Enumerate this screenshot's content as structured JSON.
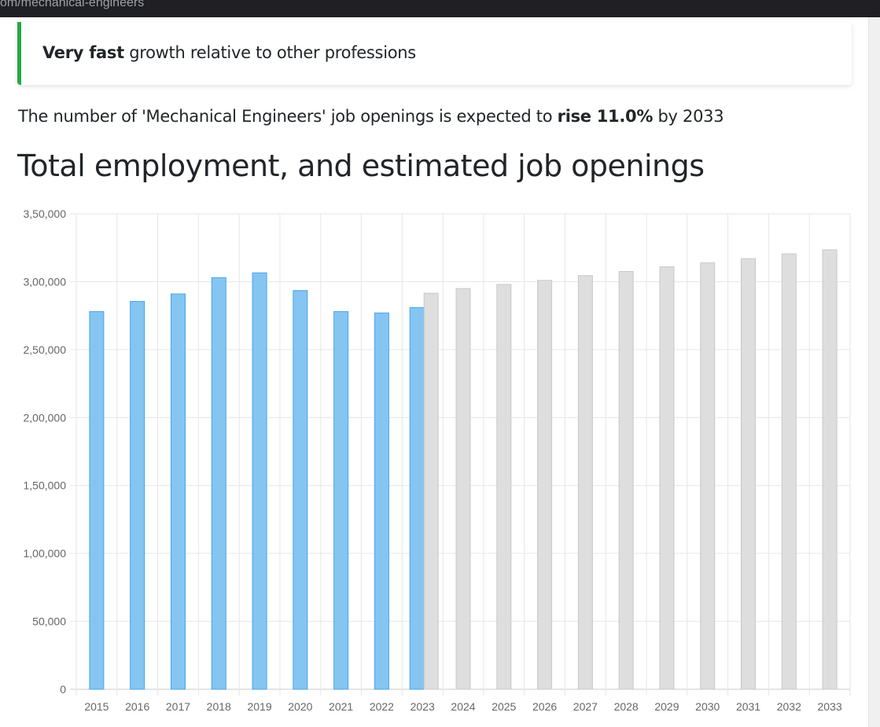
{
  "browser": {
    "url_fragment": "om/mechanical-engineers"
  },
  "callout": {
    "strong": "Very fast",
    "rest": " growth relative to other professions",
    "accent_color": "#28a745"
  },
  "summary": {
    "prefix": "The number of 'Mechanical Engineers' job openings is expected to ",
    "strong": "rise 11.0%",
    "suffix": " by 2033"
  },
  "section_title": "Total employment, and estimated job openings",
  "chart_data": {
    "type": "bar",
    "title": "",
    "xlabel": "",
    "ylabel": "",
    "ylim": [
      0,
      350000
    ],
    "y_ticks": [
      {
        "value": 0,
        "label": "0"
      },
      {
        "value": 50000,
        "label": "50,000"
      },
      {
        "value": 100000,
        "label": "1,00,000"
      },
      {
        "value": 150000,
        "label": "1,50,000"
      },
      {
        "value": 200000,
        "label": "2,00,000"
      },
      {
        "value": 250000,
        "label": "2,50,000"
      },
      {
        "value": 300000,
        "label": "3,00,000"
      },
      {
        "value": 350000,
        "label": "3,50,000"
      }
    ],
    "grid": true,
    "legend": "none",
    "categories": [
      "2015",
      "2016",
      "2017",
      "2018",
      "2019",
      "2020",
      "2021",
      "2022",
      "2023",
      "2024",
      "2025",
      "2026",
      "2027",
      "2028",
      "2029",
      "2030",
      "2031",
      "2032",
      "2033"
    ],
    "series": [
      {
        "kind": "actual",
        "color": "#85c5f2",
        "border": "#48a4e8",
        "values": [
          278000,
          285500,
          291000,
          303000,
          306500,
          293500,
          278000,
          277000,
          281000,
          null,
          null,
          null,
          null,
          null,
          null,
          null,
          null,
          null,
          null
        ]
      },
      {
        "kind": "projected",
        "color": "#dedede",
        "border": "#c8c8c8",
        "values": [
          null,
          null,
          null,
          null,
          null,
          null,
          null,
          null,
          291500,
          295000,
          298000,
          301000,
          304500,
          307500,
          311000,
          314000,
          317000,
          320500,
          323500
        ]
      }
    ]
  }
}
